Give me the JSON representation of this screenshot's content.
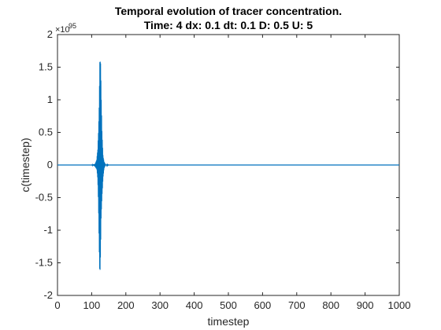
{
  "chart_data": {
    "type": "line",
    "title": "Temporal evolution of tracer concentration.",
    "subtitle": "Time: 4 dx: 0.1 dt: 0.1 D: 0.5 U: 5",
    "xlabel": "timestep",
    "ylabel": "c(timestep)",
    "y_exponent_label": "×10",
    "y_exponent_power": "95",
    "xlim": [
      0,
      1000
    ],
    "ylim": [
      -2,
      2
    ],
    "y_scale_factor": "1e95",
    "x_ticks": [
      0,
      100,
      200,
      300,
      400,
      500,
      600,
      700,
      800,
      900,
      1000
    ],
    "y_ticks": [
      -2,
      -1.5,
      -1,
      -0.5,
      0,
      0.5,
      1,
      1.5,
      2
    ],
    "grid": false,
    "series": [
      {
        "color": "#0072BD",
        "description_points": {
          "x": [
            0,
            100,
            110,
            115,
            118,
            120,
            122,
            124,
            126,
            128,
            130,
            133,
            136,
            140,
            150,
            1000
          ],
          "y_envelope": [
            0,
            0,
            0.02,
            0.08,
            0.25,
            0.6,
            1.2,
            1.8,
            1.6,
            1.0,
            0.55,
            0.2,
            0.06,
            0.01,
            0,
            0
          ]
        }
      }
    ]
  }
}
